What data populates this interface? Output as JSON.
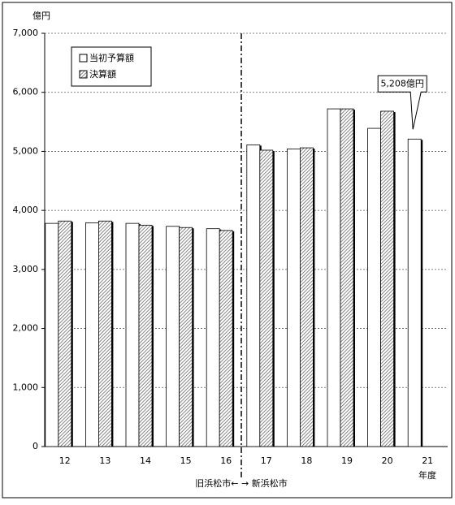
{
  "chart_data": {
    "type": "bar",
    "y_unit": "億円",
    "x_label": "年度",
    "divider_label": "旧浜松市← → 新浜松市",
    "categories": [
      "12",
      "13",
      "14",
      "15",
      "16",
      "17",
      "18",
      "19",
      "20",
      "21"
    ],
    "series": [
      {
        "name": "当初予算額",
        "color": "#ffffff",
        "pattern": "none",
        "values": [
          3780,
          3790,
          3780,
          3730,
          3690,
          5110,
          5040,
          5720,
          5390,
          5208
        ],
        "value_labels": [
          null,
          null,
          null,
          null,
          null,
          null,
          null,
          null,
          null,
          "5,208億円"
        ]
      },
      {
        "name": "決算額",
        "color": "#ffffff",
        "pattern": "diagonal",
        "values": [
          3820,
          3820,
          3750,
          3710,
          3660,
          5020,
          5060,
          5720,
          5680,
          null
        ]
      }
    ],
    "ylim": [
      0,
      7000
    ],
    "yticks": [
      0,
      {
        "value": 1000,
        "label": "1,000"
      },
      {
        "value": 2000,
        "label": "2,000"
      },
      {
        "value": 3000,
        "label": "3,000"
      },
      {
        "value": 4000,
        "label": "4,000"
      },
      {
        "value": 5000,
        "label": "5,000"
      },
      {
        "value": 6000,
        "label": "6,000"
      },
      {
        "value": 7000,
        "label": "7,000"
      }
    ],
    "grid": true
  }
}
